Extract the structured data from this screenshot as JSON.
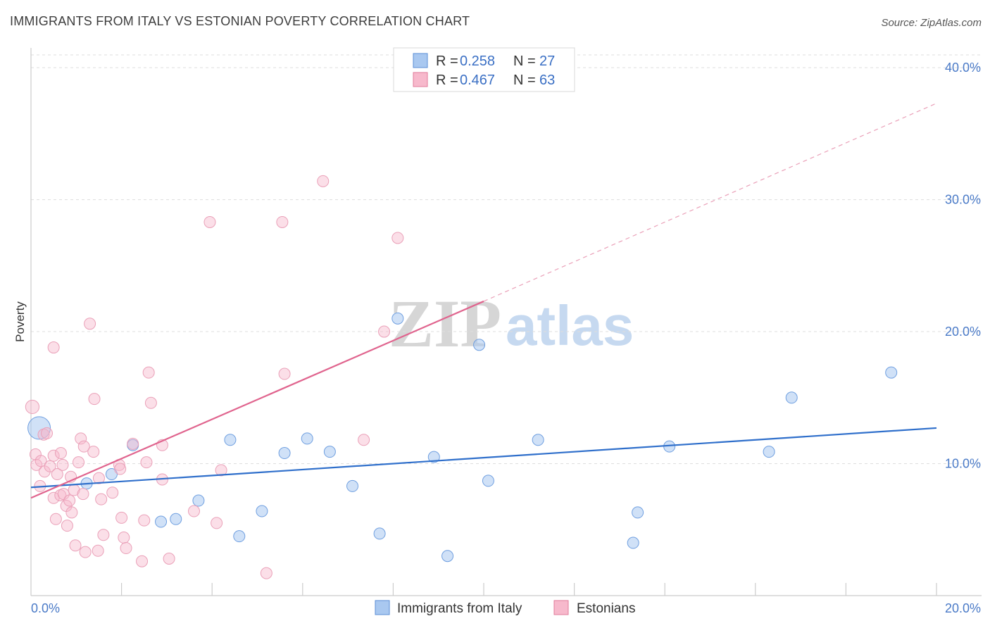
{
  "header": {
    "title": "IMMIGRANTS FROM ITALY VS ESTONIAN POVERTY CORRELATION CHART",
    "source": "Source: ZipAtlas.com"
  },
  "watermark": {
    "zip": "ZIP",
    "atlas": "atlas"
  },
  "legend": {
    "rows": [
      {
        "r_label": "R = ",
        "r_value": "0.258",
        "n_label": "N = ",
        "n_value": "27",
        "color": "#a9c8f0",
        "stroke": "#5a8ed6"
      },
      {
        "r_label": "R = ",
        "r_value": "0.467",
        "n_label": "N = ",
        "n_value": "63",
        "color": "#f7b9cc",
        "stroke": "#e07a9a"
      }
    ]
  },
  "bottom_legend": [
    {
      "label": "Immigrants from Italy",
      "color": "#a9c8f0",
      "stroke": "#5a8ed6"
    },
    {
      "label": "Estonians",
      "color": "#f7b9cc",
      "stroke": "#e07a9a"
    }
  ],
  "chart_data": {
    "type": "scatter",
    "title": "IMMIGRANTS FROM ITALY VS ESTONIAN POVERTY CORRELATION CHART",
    "xlabel": "",
    "ylabel": "Poverty",
    "xlim": [
      0,
      20
    ],
    "ylim": [
      0,
      41.5
    ],
    "x_tick_labels": [
      "0.0%",
      "20.0%"
    ],
    "y_ticks": [
      10,
      20,
      30,
      40
    ],
    "y_tick_labels": [
      "10.0%",
      "20.0%",
      "30.0%",
      "40.0%"
    ],
    "grid": true,
    "legend_position": "top-center",
    "series": [
      {
        "name": "Immigrants from Italy",
        "color": "#6f9fe0",
        "r": 0.258,
        "n": 27,
        "trend": {
          "x0": 0,
          "y0": 8.2,
          "x1": 20,
          "y1": 12.7
        },
        "points": [
          [
            0.18,
            12.7,
            2.0
          ],
          [
            1.23,
            8.5,
            1
          ],
          [
            1.78,
            9.2,
            1
          ],
          [
            2.25,
            11.4,
            1
          ],
          [
            2.87,
            5.6,
            1
          ],
          [
            3.2,
            5.8,
            1
          ],
          [
            3.7,
            7.2,
            1
          ],
          [
            4.4,
            11.8,
            1
          ],
          [
            4.6,
            4.5,
            1
          ],
          [
            5.1,
            6.4,
            1
          ],
          [
            5.6,
            10.8,
            1
          ],
          [
            6.1,
            11.9,
            1
          ],
          [
            6.6,
            10.9,
            1
          ],
          [
            7.1,
            8.3,
            1
          ],
          [
            7.7,
            4.7,
            1
          ],
          [
            8.1,
            21.0,
            1
          ],
          [
            8.9,
            10.5,
            1
          ],
          [
            9.2,
            3.0,
            1
          ],
          [
            9.9,
            19.0,
            1
          ],
          [
            10.1,
            8.7,
            1
          ],
          [
            11.2,
            11.8,
            1
          ],
          [
            13.4,
            6.3,
            1
          ],
          [
            13.3,
            4.0,
            1
          ],
          [
            14.1,
            11.3,
            1
          ],
          [
            16.3,
            10.9,
            1
          ],
          [
            16.8,
            15.0,
            1
          ],
          [
            19.0,
            16.9,
            1
          ]
        ]
      },
      {
        "name": "Estonians",
        "color": "#f2a6bf",
        "r": 0.467,
        "n": 63,
        "trend": {
          "x0": 0,
          "y0": 7.4,
          "x1": 10.0,
          "y1": 22.3,
          "dash_x1": 20,
          "dash_y1": 37.3
        },
        "points": [
          [
            0.03,
            14.3,
            1.2
          ],
          [
            0.1,
            10.7,
            1
          ],
          [
            0.12,
            9.9,
            1
          ],
          [
            0.2,
            8.3,
            1
          ],
          [
            0.22,
            10.2,
            1
          ],
          [
            0.28,
            12.2,
            1
          ],
          [
            0.3,
            9.4,
            1
          ],
          [
            0.35,
            12.3,
            1
          ],
          [
            0.42,
            9.8,
            1
          ],
          [
            0.5,
            7.4,
            1
          ],
          [
            0.5,
            10.6,
            1
          ],
          [
            0.5,
            18.8,
            1
          ],
          [
            0.55,
            5.8,
            1
          ],
          [
            0.58,
            9.2,
            1
          ],
          [
            0.65,
            7.6,
            1
          ],
          [
            0.66,
            10.8,
            1
          ],
          [
            0.7,
            9.9,
            1
          ],
          [
            0.72,
            7.7,
            1
          ],
          [
            0.78,
            6.8,
            1
          ],
          [
            0.8,
            5.3,
            1
          ],
          [
            0.85,
            7.2,
            1
          ],
          [
            0.88,
            9.0,
            1
          ],
          [
            0.9,
            6.3,
            1
          ],
          [
            0.95,
            8.0,
            1
          ],
          [
            0.98,
            3.8,
            1
          ],
          [
            1.05,
            10.1,
            1
          ],
          [
            1.1,
            11.9,
            1
          ],
          [
            1.15,
            7.7,
            1
          ],
          [
            1.17,
            11.3,
            1
          ],
          [
            1.2,
            3.3,
            1
          ],
          [
            1.3,
            20.6,
            1
          ],
          [
            1.38,
            10.9,
            1
          ],
          [
            1.4,
            14.9,
            1
          ],
          [
            1.48,
            3.4,
            1
          ],
          [
            1.5,
            8.9,
            1
          ],
          [
            1.55,
            7.3,
            1
          ],
          [
            1.6,
            4.6,
            1
          ],
          [
            1.8,
            7.8,
            1
          ],
          [
            1.95,
            9.9,
            1
          ],
          [
            1.97,
            9.6,
            1
          ],
          [
            2.0,
            5.9,
            1
          ],
          [
            2.05,
            4.4,
            1
          ],
          [
            2.1,
            3.6,
            1
          ],
          [
            2.25,
            11.5,
            1
          ],
          [
            2.45,
            2.6,
            1
          ],
          [
            2.5,
            5.7,
            1
          ],
          [
            2.55,
            10.1,
            1
          ],
          [
            2.6,
            16.9,
            1
          ],
          [
            2.65,
            14.6,
            1
          ],
          [
            2.9,
            8.8,
            1
          ],
          [
            2.9,
            11.4,
            1
          ],
          [
            3.05,
            2.8,
            1
          ],
          [
            3.6,
            6.4,
            1
          ],
          [
            3.95,
            28.3,
            1
          ],
          [
            4.1,
            5.5,
            1
          ],
          [
            4.2,
            9.5,
            1
          ],
          [
            5.2,
            1.7,
            1
          ],
          [
            5.55,
            28.3,
            1
          ],
          [
            5.6,
            16.8,
            1
          ],
          [
            6.45,
            31.4,
            1
          ],
          [
            7.35,
            11.8,
            1
          ],
          [
            7.8,
            20.0,
            1
          ],
          [
            8.1,
            27.1,
            1
          ]
        ]
      }
    ]
  }
}
